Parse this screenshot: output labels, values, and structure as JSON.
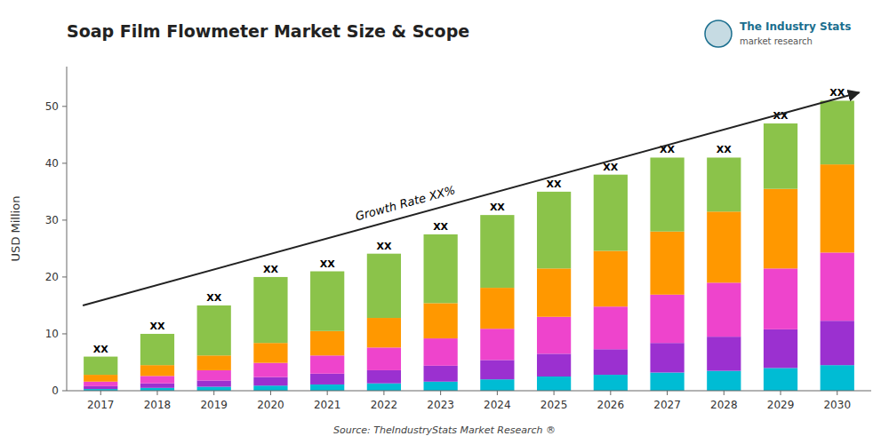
{
  "chart_data": {
    "type": "bar",
    "stacked": true,
    "grid": false,
    "title": "Soap Film Flowmeter Market Size & Scope",
    "ylabel": "USD Million",
    "source": "Source: TheIndustryStats Market Research ®",
    "branding": [
      "The Industry Stats",
      "market research"
    ],
    "annotations": [
      {
        "text": "Growth Rate XX%"
      },
      {
        "text": "XX"
      }
    ],
    "categories": [
      "2017",
      "2018",
      "2019",
      "2020",
      "2021",
      "2022",
      "2023",
      "2024",
      "2025",
      "2026",
      "2027",
      "2028",
      "2029",
      "2030"
    ],
    "series": [
      {
        "color": "#00bcd4",
        "values": [
          0.3,
          0.5,
          0.7,
          0.9,
          1.1,
          1.3,
          1.6,
          2.0,
          2.5,
          2.8,
          3.2,
          3.5,
          4.0,
          4.5
        ]
      },
      {
        "color": "#9b30d0",
        "values": [
          0.5,
          0.8,
          1.1,
          1.5,
          1.9,
          2.3,
          2.8,
          3.4,
          4.0,
          4.5,
          5.2,
          6.0,
          6.8,
          7.8
        ]
      },
      {
        "color": "#ee44cc",
        "values": [
          0.8,
          1.3,
          1.8,
          2.5,
          3.2,
          4.0,
          4.8,
          5.5,
          6.5,
          7.5,
          8.5,
          9.5,
          10.7,
          12.0
        ]
      },
      {
        "color": "#ff9800",
        "values": [
          1.2,
          1.9,
          2.6,
          3.5,
          4.3,
          5.2,
          6.2,
          7.2,
          8.5,
          9.8,
          11.1,
          12.5,
          14.0,
          15.5
        ]
      },
      {
        "color": "#8bc34a",
        "values": [
          3.2,
          5.5,
          8.8,
          11.6,
          10.5,
          11.3,
          12.1,
          12.8,
          13.5,
          13.4,
          13.0,
          9.5,
          11.5,
          11.2
        ]
      }
    ],
    "ylim": [
      0,
      57
    ],
    "yticks": [
      0,
      10,
      20,
      30,
      40,
      50
    ]
  }
}
